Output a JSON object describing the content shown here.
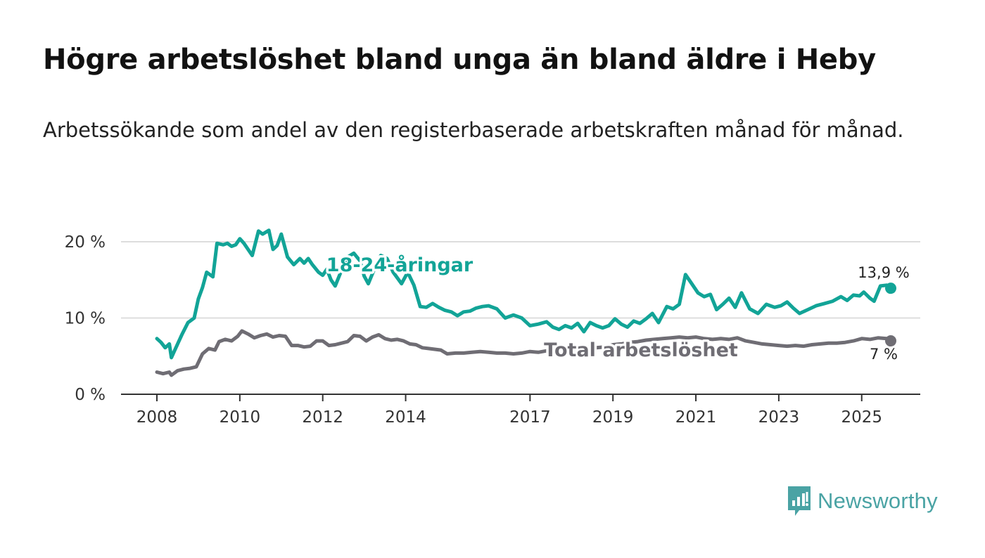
{
  "title": "Högre arbetslöshet bland unga än bland äldre i Heby",
  "subtitle": "Arbetssökande som andel av den registerbaserade arbetskraften månad för månad.",
  "brand": {
    "name": "Newsworthy",
    "icon": "newsworthy-logo-icon",
    "color": "#4aa3a4"
  },
  "colors": {
    "youth": "#12a497",
    "total": "#6f6d74",
    "grid": "#dddddd",
    "axis": "#333333"
  },
  "chart_data": {
    "type": "line",
    "title": "Högre arbetslöshet bland unga än bland äldre i Heby",
    "xlabel": "",
    "ylabel": "",
    "xlim": [
      2008.0,
      2026.5
    ],
    "ylim": [
      0,
      20
    ],
    "yticks": [
      0,
      10,
      20
    ],
    "ytick_labels": [
      "0 %",
      "10 %",
      "20 %"
    ],
    "xticks": [
      2008,
      2010,
      2012,
      2014,
      2017,
      2019,
      2021,
      2023,
      2025
    ],
    "xtick_labels": [
      "2008",
      "2010",
      "2012",
      "2014",
      "2017",
      "2019",
      "2021",
      "2023",
      "2025"
    ],
    "grid": true,
    "series": [
      {
        "name": "18-24-åringar",
        "label": "18-24-åringar",
        "end_label": "13,9 %",
        "x": [
          2008.0,
          2008.1,
          2008.2,
          2008.3,
          2008.35,
          2008.45,
          2008.6,
          2008.75,
          2008.9,
          2009.0,
          2009.1,
          2009.2,
          2009.35,
          2009.45,
          2009.6,
          2009.7,
          2009.8,
          2009.9,
          2010.0,
          2010.1,
          2010.2,
          2010.3,
          2010.45,
          2010.55,
          2010.7,
          2010.8,
          2010.9,
          2011.0,
          2011.15,
          2011.3,
          2011.45,
          2011.55,
          2011.65,
          2011.75,
          2011.9,
          2012.0,
          2012.1,
          2012.2,
          2012.3,
          2012.45,
          2012.6,
          2012.75,
          2012.9,
          2013.0,
          2013.1,
          2013.25,
          2013.4,
          2013.55,
          2013.7,
          2013.9,
          2014.05,
          2014.2,
          2014.35,
          2014.5,
          2014.65,
          2014.8,
          2014.95,
          2015.1,
          2015.25,
          2015.4,
          2015.55,
          2015.7,
          2015.85,
          2016.0,
          2016.2,
          2016.4,
          2016.6,
          2016.8,
          2017.0,
          2017.2,
          2017.4,
          2017.55,
          2017.7,
          2017.85,
          2018.0,
          2018.15,
          2018.3,
          2018.45,
          2018.6,
          2018.75,
          2018.9,
          2019.05,
          2019.2,
          2019.35,
          2019.5,
          2019.65,
          2019.8,
          2019.95,
          2020.1,
          2020.3,
          2020.45,
          2020.6,
          2020.75,
          2020.9,
          2021.05,
          2021.2,
          2021.35,
          2021.5,
          2021.65,
          2021.8,
          2021.95,
          2022.1,
          2022.3,
          2022.5,
          2022.7,
          2022.9,
          2023.05,
          2023.2,
          2023.35,
          2023.5,
          2023.7,
          2023.9,
          2024.1,
          2024.3,
          2024.5,
          2024.65,
          2024.8,
          2024.95,
          2025.05,
          2025.2,
          2025.3,
          2025.45,
          2025.6,
          2025.7
        ],
        "values": [
          7.3,
          6.8,
          6.1,
          6.6,
          4.8,
          6.0,
          7.8,
          9.4,
          10.0,
          12.5,
          14.0,
          16.0,
          15.4,
          19.8,
          19.6,
          19.8,
          19.4,
          19.6,
          20.4,
          19.8,
          19.0,
          18.2,
          21.4,
          21.0,
          21.5,
          19.0,
          19.5,
          21.0,
          18.0,
          17.0,
          17.8,
          17.2,
          17.8,
          17.0,
          16.0,
          15.6,
          16.4,
          15.0,
          14.2,
          16.2,
          18.0,
          18.5,
          17.5,
          15.5,
          14.5,
          16.5,
          18.2,
          17.8,
          16.0,
          14.5,
          16.0,
          14.3,
          11.5,
          11.4,
          11.9,
          11.4,
          11.0,
          10.8,
          10.3,
          10.8,
          10.9,
          11.3,
          11.5,
          11.6,
          11.2,
          10.0,
          10.4,
          10.0,
          9.0,
          9.2,
          9.5,
          8.8,
          8.5,
          9.0,
          8.7,
          9.3,
          8.2,
          9.4,
          9.0,
          8.7,
          9.0,
          9.9,
          9.2,
          8.8,
          9.6,
          9.3,
          9.9,
          10.6,
          9.4,
          11.5,
          11.2,
          11.8,
          15.7,
          14.5,
          13.3,
          12.8,
          13.1,
          11.1,
          11.8,
          12.6,
          11.4,
          13.3,
          11.2,
          10.6,
          11.8,
          11.4,
          11.6,
          12.1,
          11.3,
          10.6,
          11.1,
          11.6,
          11.9,
          12.2,
          12.8,
          12.3,
          13.0,
          12.9,
          13.4,
          12.6,
          12.2,
          14.2,
          14.3,
          13.9
        ]
      },
      {
        "name": "Total arbetslöshet",
        "label": "Total arbetslöshet",
        "end_label": "7 %",
        "x": [
          2008.0,
          2008.15,
          2008.3,
          2008.35,
          2008.5,
          2008.65,
          2008.8,
          2008.95,
          2009.1,
          2009.25,
          2009.4,
          2009.5,
          2009.65,
          2009.8,
          2009.95,
          2010.05,
          2010.2,
          2010.35,
          2010.5,
          2010.65,
          2010.8,
          2010.95,
          2011.1,
          2011.25,
          2011.4,
          2011.55,
          2011.7,
          2011.85,
          2012.0,
          2012.15,
          2012.3,
          2012.45,
          2012.6,
          2012.75,
          2012.9,
          2013.05,
          2013.2,
          2013.35,
          2013.5,
          2013.65,
          2013.8,
          2013.95,
          2014.1,
          2014.25,
          2014.4,
          2014.55,
          2014.7,
          2014.85,
          2015.0,
          2015.2,
          2015.4,
          2015.6,
          2015.8,
          2016.0,
          2016.2,
          2016.4,
          2016.6,
          2016.8,
          2017.0,
          2017.2,
          2017.4,
          2017.6,
          2017.8,
          2018.0,
          2018.2,
          2018.4,
          2018.6,
          2018.8,
          2019.0,
          2019.2,
          2019.4,
          2019.6,
          2019.8,
          2020.0,
          2020.2,
          2020.4,
          2020.6,
          2020.8,
          2021.0,
          2021.2,
          2021.4,
          2021.6,
          2021.8,
          2022.0,
          2022.2,
          2022.4,
          2022.6,
          2022.8,
          2023.0,
          2023.2,
          2023.4,
          2023.6,
          2023.8,
          2024.0,
          2024.2,
          2024.4,
          2024.6,
          2024.8,
          2025.0,
          2025.2,
          2025.4,
          2025.6,
          2025.7
        ],
        "values": [
          2.9,
          2.7,
          2.9,
          2.5,
          3.1,
          3.3,
          3.4,
          3.6,
          5.3,
          6.0,
          5.8,
          6.9,
          7.2,
          7.0,
          7.6,
          8.3,
          7.9,
          7.4,
          7.7,
          7.9,
          7.5,
          7.7,
          7.6,
          6.4,
          6.4,
          6.2,
          6.3,
          7.0,
          7.0,
          6.4,
          6.5,
          6.7,
          6.9,
          7.7,
          7.6,
          7.0,
          7.5,
          7.8,
          7.3,
          7.1,
          7.2,
          7.0,
          6.6,
          6.5,
          6.1,
          6.0,
          5.9,
          5.8,
          5.3,
          5.4,
          5.4,
          5.5,
          5.6,
          5.5,
          5.4,
          5.4,
          5.3,
          5.4,
          5.6,
          5.5,
          5.7,
          5.6,
          5.5,
          5.8,
          6.0,
          6.2,
          6.1,
          6.2,
          6.5,
          6.6,
          6.8,
          6.9,
          7.1,
          7.2,
          7.3,
          7.4,
          7.5,
          7.4,
          7.5,
          7.3,
          7.2,
          7.3,
          7.2,
          7.4,
          7.0,
          6.8,
          6.6,
          6.5,
          6.4,
          6.3,
          6.4,
          6.3,
          6.5,
          6.6,
          6.7,
          6.7,
          6.8,
          7.0,
          7.3,
          7.2,
          7.4,
          7.3,
          7.0
        ]
      }
    ]
  }
}
